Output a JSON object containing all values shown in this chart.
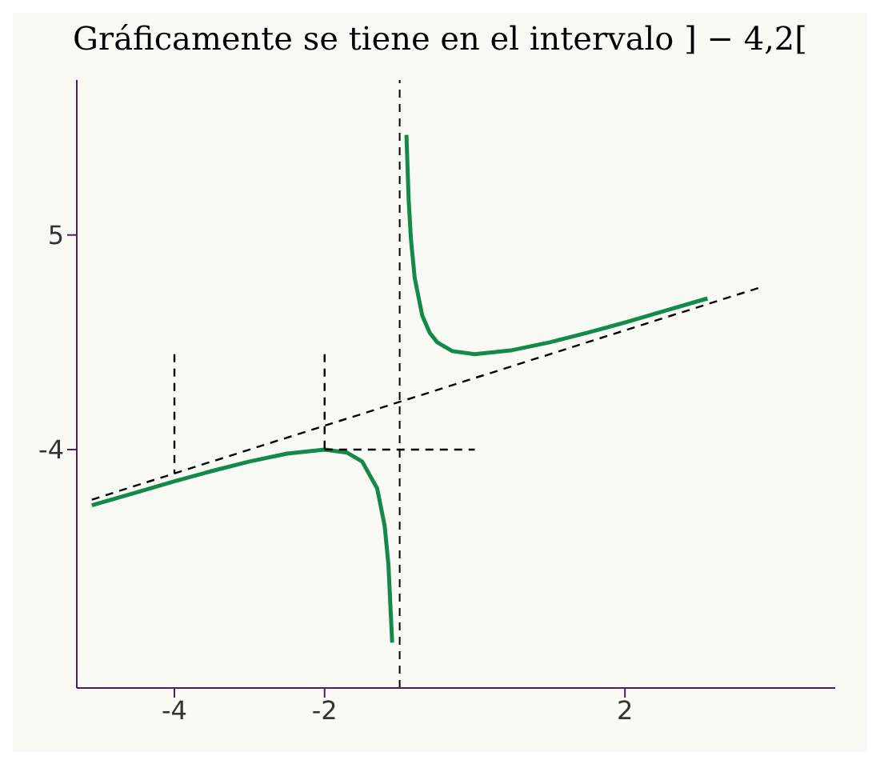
{
  "chart_data": {
    "type": "line",
    "title": "Gráficamente se tiene en el intervalo ] − 4,2[",
    "series": [
      {
        "color": "#13894a",
        "line_style": "solid",
        "x": [
          -5.1,
          -4.5,
          -4,
          -3.5,
          -3,
          -2.5,
          -2,
          -1.7,
          -1.5,
          -1.3,
          -1.2,
          -1.15,
          -1.1
        ],
        "values": [
          -6.34,
          -5.79,
          -5.33,
          -4.9,
          -4.5,
          -4.17,
          -4,
          -4.13,
          -4.5,
          -5.63,
          -7.2,
          -8.82,
          -12.1
        ]
      },
      {
        "color": "#13894a",
        "line_style": "solid",
        "x": [
          -0.91,
          -0.88,
          -0.85,
          -0.8,
          -0.7,
          -0.6,
          -0.5,
          -0.3,
          0,
          0.5,
          1,
          1.5,
          2,
          2.5,
          3.1
        ],
        "values": [
          9.2,
          6.45,
          4.82,
          3.2,
          1.63,
          0.9,
          0.5,
          0.13,
          0,
          0.17,
          0.5,
          0.9,
          1.33,
          1.79,
          2.34
        ]
      },
      {
        "color": "#000000",
        "line_style": "dashed",
        "x": [
          -5.1,
          3.8
        ],
        "values": [
          -6.1,
          2.8
        ]
      },
      {
        "color": "#000000",
        "line_style": "dashed",
        "x": [
          -4,
          -4
        ],
        "values": [
          0,
          -5
        ]
      },
      {
        "color": "#000000",
        "line_style": "dashed",
        "x": [
          -2,
          -2
        ],
        "values": [
          0,
          -4
        ]
      },
      {
        "color": "#000000",
        "line_style": "dashed",
        "x": [
          -2,
          0
        ],
        "values": [
          -4,
          -4
        ]
      }
    ],
    "ref_lines": [
      {
        "axis": "x",
        "value": -1,
        "color": "#000000",
        "line_style": "dashed"
      }
    ],
    "xlim": [
      -5.3,
      4.8
    ],
    "xticks": [
      -4,
      -2,
      2
    ],
    "ylim": [
      -14,
      11.5
    ],
    "yticks": [
      -4,
      5
    ],
    "marker": "none",
    "grid": false
  }
}
